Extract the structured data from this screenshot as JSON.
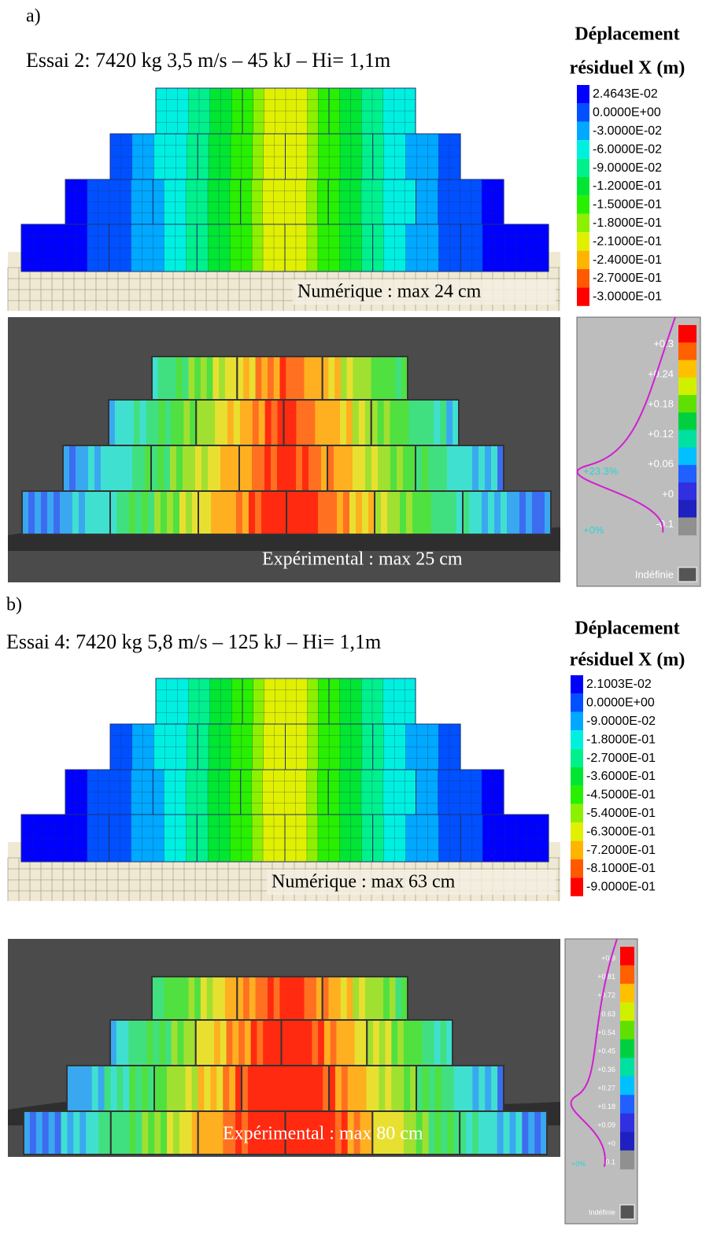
{
  "panels": [
    {
      "label": "a)",
      "title": "Essai 2: 7420 kg 3,5 m/s – 45 kJ – Hi= 1,1m",
      "legend": {
        "title_line1": "Déplacement",
        "title_line2": "résiduel X (m)",
        "values": [
          "2.4643E-02",
          "0.0000E+00",
          "-3.0000E-02",
          "-6.0000E-02",
          "-9.0000E-02",
          "-1.2000E-01",
          "-1.5000E-01",
          "-1.8000E-01",
          "-2.1000E-01",
          "-2.4000E-01",
          "-2.7000E-01",
          "-3.0000E-01"
        ]
      },
      "numerical_caption": "Numérique : max 24 cm",
      "experimental_caption": "Expérimental : max 25 cm",
      "experimental_scale": {
        "labels": [
          "+0.3",
          "+0.24",
          "+0.18",
          "+0.12",
          "+0.06",
          "+0",
          "-0.1"
        ],
        "percent_labels": [
          "+23.3%",
          "+0%"
        ],
        "undefined_label": "Indéfinie"
      }
    },
    {
      "label": "b)",
      "title": "Essai 4: 7420 kg 5,8 m/s – 125 kJ – Hi= 1,1m",
      "legend": {
        "title_line1": "Déplacement",
        "title_line2": "résiduel X (m)",
        "values": [
          "2.1003E-02",
          "0.0000E+00",
          "-9.0000E-02",
          "-1.8000E-01",
          "-2.7000E-01",
          "-3.6000E-01",
          "-4.5000E-01",
          "-5.4000E-01",
          "-6.3000E-01",
          "-7.2000E-01",
          "-8.1000E-01",
          "-9.0000E-01"
        ]
      },
      "numerical_caption": "Numérique : max 63 cm",
      "experimental_caption": "Expérimental : max 80 cm",
      "experimental_scale": {
        "labels": [
          "+0.9",
          "+0.81",
          "+0.72",
          "+0.63",
          "+0.54",
          "+0.45",
          "+0.36",
          "+0.27",
          "+0.18",
          "+0.09",
          "+0",
          "-0.1"
        ],
        "percent_labels": [
          "+0%"
        ],
        "undefined_label": "Indéfinie"
      }
    }
  ]
}
